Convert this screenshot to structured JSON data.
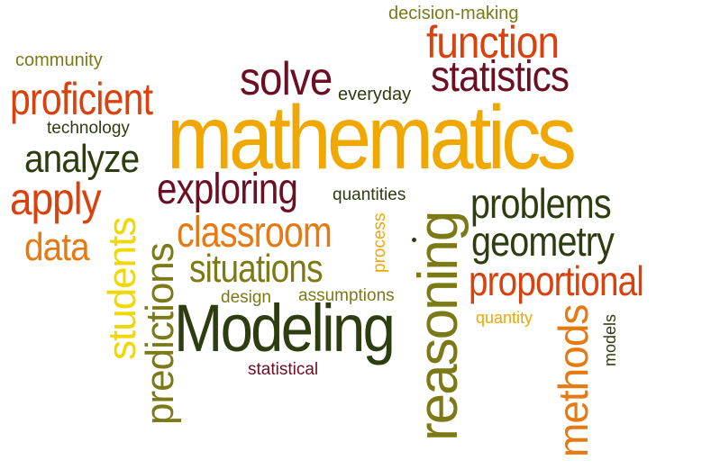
{
  "palette": {
    "dark_green": "#2e3d10",
    "olive": "#7c7a16",
    "maroon": "#6b0f24",
    "orange": "#e47a11",
    "red_orange": "#d9420e",
    "gold": "#f0a800",
    "yellow": "#f0d800",
    "background": "#ffffff"
  },
  "words": [
    {
      "id": "mathematics",
      "text": "mathematics",
      "color": "gold"
    },
    {
      "id": "Modeling",
      "text": "Modeling",
      "color": "dark_green"
    },
    {
      "id": "reasoning",
      "text": "reasoning",
      "color": "olive"
    },
    {
      "id": "function",
      "text": "function",
      "color": "red_orange"
    },
    {
      "id": "statistics",
      "text": "statistics",
      "color": "maroon"
    },
    {
      "id": "solve",
      "text": "solve",
      "color": "maroon"
    },
    {
      "id": "proficient",
      "text": "proficient",
      "color": "red_orange"
    },
    {
      "id": "analyze",
      "text": "analyze",
      "color": "dark_green"
    },
    {
      "id": "apply",
      "text": "apply",
      "color": "red_orange"
    },
    {
      "id": "data",
      "text": "data",
      "color": "orange"
    },
    {
      "id": "exploring",
      "text": "exploring",
      "color": "maroon"
    },
    {
      "id": "classroom",
      "text": "classroom",
      "color": "orange"
    },
    {
      "id": "situations",
      "text": "situations",
      "color": "olive"
    },
    {
      "id": "problems",
      "text": "problems",
      "color": "dark_green"
    },
    {
      "id": "geometry",
      "text": "geometry",
      "color": "dark_green"
    },
    {
      "id": "proportional",
      "text": "proportional",
      "color": "red_orange"
    },
    {
      "id": "students",
      "text": "students",
      "color": "yellow"
    },
    {
      "id": "predictions",
      "text": "predictions",
      "color": "olive"
    },
    {
      "id": "methods",
      "text": "methods",
      "color": "orange"
    },
    {
      "id": "decision-making",
      "text": "decision-making",
      "color": "olive"
    },
    {
      "id": "community",
      "text": "community",
      "color": "olive"
    },
    {
      "id": "everyday",
      "text": "everyday",
      "color": "dark_green"
    },
    {
      "id": "technology",
      "text": "technology",
      "color": "dark_green"
    },
    {
      "id": "quantities",
      "text": "quantities",
      "color": "dark_green"
    },
    {
      "id": "process",
      "text": "process",
      "color": "gold"
    },
    {
      "id": "design",
      "text": "design",
      "color": "olive"
    },
    {
      "id": "assumptions",
      "text": "assumptions",
      "color": "olive"
    },
    {
      "id": "quantity",
      "text": "quantity",
      "color": "gold"
    },
    {
      "id": "models",
      "text": "models",
      "color": "dark_green"
    },
    {
      "id": "statistical",
      "text": "statistical",
      "color": "maroon"
    }
  ]
}
